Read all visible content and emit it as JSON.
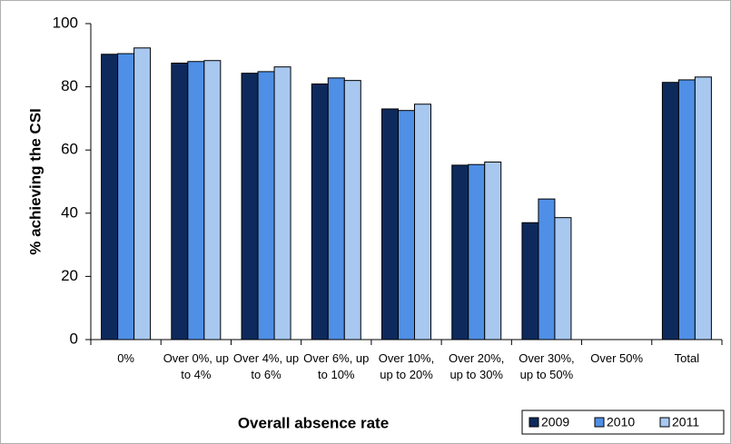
{
  "chart_data": {
    "type": "bar",
    "x_label": "Overall absence rate",
    "y_label": "% achieving the CSI",
    "categories": [
      "0%",
      "Over 0%, up to 4%",
      "Over 4%, up to 6%",
      "Over 6%, up to 10%",
      "Over 10%, up to 20%",
      "Over 20%, up to 30%",
      "Over 30%, up to 50%",
      "Over 50%",
      "Total"
    ],
    "series": [
      {
        "name": "2009",
        "color": "#0e2a5c",
        "values": [
          90.3,
          87.5,
          84.3,
          80.9,
          73.0,
          55.2,
          37.0,
          null,
          81.4
        ]
      },
      {
        "name": "2010",
        "color": "#4f8fe6",
        "values": [
          90.5,
          88.0,
          84.8,
          82.8,
          72.5,
          55.4,
          44.5,
          null,
          82.2
        ]
      },
      {
        "name": "2011",
        "color": "#a8c8f0",
        "values": [
          92.3,
          88.3,
          86.3,
          82.0,
          74.5,
          56.2,
          38.6,
          null,
          83.1
        ]
      }
    ],
    "ylim": [
      0,
      100
    ],
    "yticks": [
      0,
      20,
      40,
      60,
      80,
      100
    ],
    "legend": "bottom-right"
  }
}
